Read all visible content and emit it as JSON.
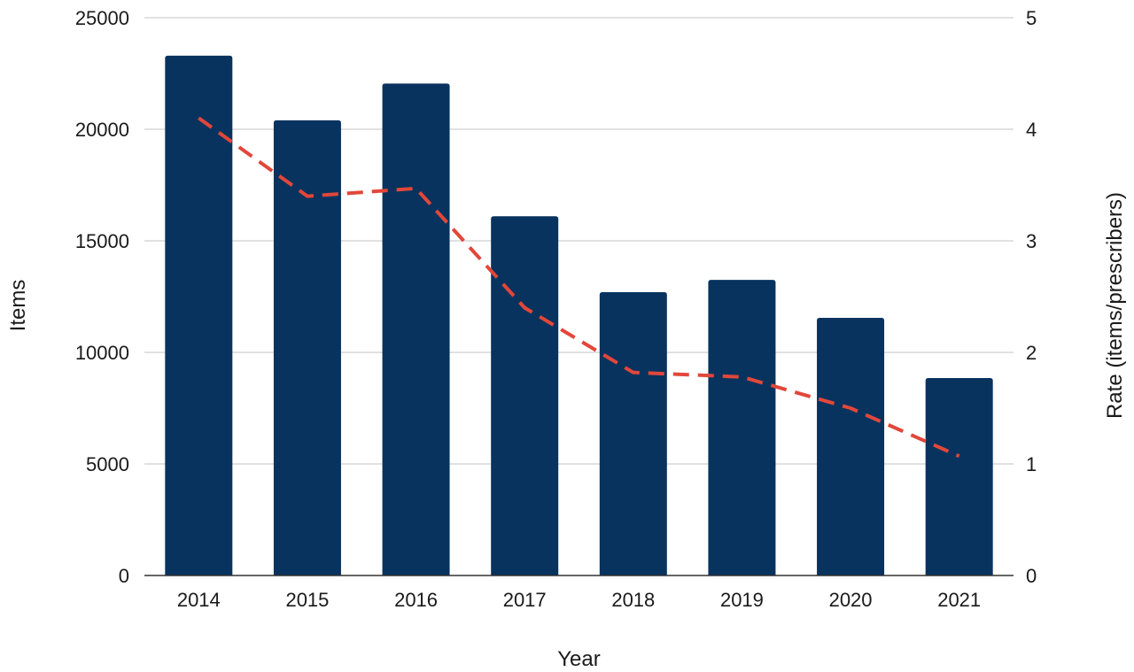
{
  "chart_data": {
    "type": "bar",
    "categories": [
      "2014",
      "2015",
      "2016",
      "2017",
      "2018",
      "2019",
      "2020",
      "2021"
    ],
    "series": [
      {
        "type": "bar",
        "axis": "left",
        "color": "#08335e",
        "values": [
          23300,
          20400,
          22050,
          16100,
          12700,
          13250,
          11550,
          8850
        ]
      },
      {
        "type": "line",
        "axis": "right",
        "color": "#e2473a",
        "dashed": true,
        "values": [
          4.1,
          3.4,
          3.47,
          2.4,
          1.82,
          1.78,
          1.5,
          1.07
        ]
      }
    ],
    "xlabel": "Year",
    "ylabel": "Items",
    "y2label": "Rate (items/prescribers)",
    "ylim": [
      0,
      25000
    ],
    "y2lim": [
      0,
      5
    ],
    "yticks": [
      "0",
      "5000",
      "10000",
      "15000",
      "20000",
      "25000"
    ],
    "y2ticks": [
      "0",
      "1",
      "2",
      "3",
      "4",
      "5"
    ],
    "grid": true
  }
}
